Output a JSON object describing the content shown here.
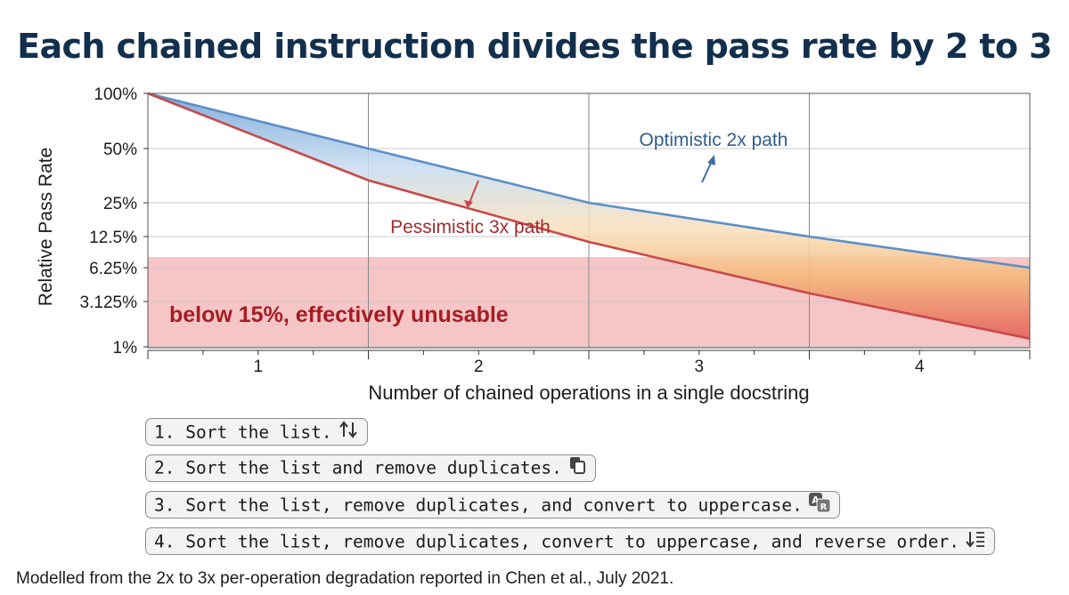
{
  "title": "Each chained instruction divides the pass rate by 2 to 3",
  "chart_data": {
    "type": "line",
    "title": "Each chained instruction divides the pass rate by 2 to 3",
    "xlabel": "Number of chained operations in a single docstring",
    "ylabel": "Relative Pass Rate",
    "x_ticks": [
      "1",
      "2",
      "3",
      "4"
    ],
    "y_scale": "log",
    "y_ticks": [
      "100%",
      "50%",
      "25%",
      "12.5%",
      "6.25%",
      "3.125%",
      "1%"
    ],
    "y_tick_values": [
      100,
      50,
      25,
      12.5,
      6.25,
      3.125,
      1
    ],
    "xlim": [
      0.5,
      4.5
    ],
    "ylim": [
      1,
      100
    ],
    "grid": true,
    "series": [
      {
        "name": "Optimistic 2x path",
        "color": "#5b8fc7",
        "x": [
          0.5,
          1.5,
          2.5,
          3.5,
          4.5
        ],
        "y": [
          100,
          50,
          25,
          12.5,
          6.25
        ]
      },
      {
        "name": "Pessimistic 3x path",
        "color": "#c8494a",
        "x": [
          0.5,
          1.5,
          2.5,
          3.5,
          4.5
        ],
        "y": [
          100,
          33.3,
          11.1,
          3.7,
          1.23
        ]
      }
    ],
    "annotations": [
      {
        "text": "Optimistic 2x path",
        "color": "#2f5f8e"
      },
      {
        "text": "Pessimistic 3x path",
        "color": "#a02c2f"
      },
      {
        "text": "below 15%, effectively unusable",
        "color": "#a51d22"
      }
    ],
    "threshold": {
      "value": 15,
      "label": "below 15%, effectively unusable",
      "color": "#f6c2c3"
    }
  },
  "examples": [
    {
      "text": "1. Sort the list.",
      "icon": "sort-arrows-icon"
    },
    {
      "text": "2. Sort the list and remove duplicates.",
      "icon": "copy-icon"
    },
    {
      "text": "3. Sort the list, remove duplicates, and convert to uppercase.",
      "icon": "letter-case-icon"
    },
    {
      "text": "4. Sort the list, remove duplicates, convert to uppercase, and reverse order.",
      "icon": "reverse-sort-icon"
    }
  ],
  "footnote": "Modelled from the 2x to 3x per-operation degradation reported in Chen et al., July 2021."
}
